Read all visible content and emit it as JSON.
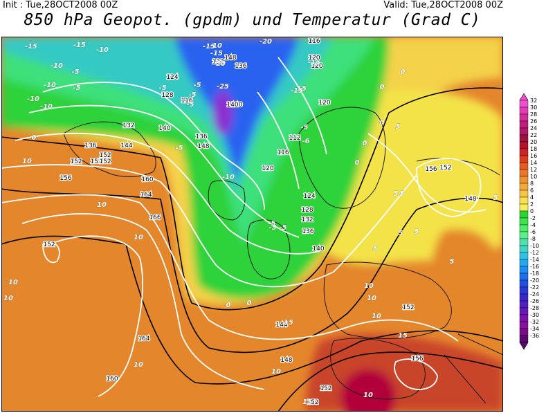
{
  "header": {
    "init": "Init : Tue,28OCT2008 00Z",
    "valid": "Valid: Tue,28OCT2008 00Z",
    "title": "850 hPa Geopot. (gpdm) und Temperatur (Grad C)"
  },
  "colors": {
    "deep_violet": "#8e2fd0",
    "blue": "#2a62f0",
    "cyan": "#22c6e8",
    "green": "#2ed23a",
    "yellow_green": "#a8e23a",
    "yellow": "#f4e24a",
    "orange": "#e4862c",
    "deep_orange": "#da6422",
    "red": "#c22a2a",
    "crimson": "#b2003a"
  },
  "legend": {
    "labels": [
      "32",
      "30",
      "28",
      "26",
      "24",
      "22",
      "20",
      "18",
      "16",
      "14",
      "12",
      "10",
      "8",
      "6",
      "4",
      "2",
      "0",
      "-2",
      "-4",
      "-6",
      "-8",
      "-10",
      "-12",
      "-14",
      "-16",
      "-18",
      "-20",
      "-22",
      "-24",
      "-26",
      "-28",
      "-30",
      "-32",
      "-34",
      "-36"
    ],
    "colors": [
      "#f050d0",
      "#e43cb4",
      "#d42c98",
      "#c21c7c",
      "#b01868",
      "#9e1242",
      "#b8102a",
      "#cc2424",
      "#e03a1c",
      "#e85a1e",
      "#ec7624",
      "#f09030",
      "#f4aa3a",
      "#f8c446",
      "#fae052",
      "#f4f05a",
      "#2ad630",
      "#3ae44a",
      "#4af064",
      "#5af28a",
      "#50e2aa",
      "#40d4c8",
      "#2cc4e6",
      "#20aaf0",
      "#1e8cf2",
      "#1e6ef0",
      "#2050e6",
      "#2a38d8",
      "#3a26cc",
      "#5020c4",
      "#6618b8",
      "#7a14ac",
      "#8c10a0",
      "#7a0c8a",
      "#5a0870"
    ]
  },
  "geopotential_labels": [
    {
      "v": "116"
    },
    {
      "v": "120"
    },
    {
      "v": "124"
    },
    {
      "v": "128"
    },
    {
      "v": "132"
    },
    {
      "v": "136"
    },
    {
      "v": "140"
    },
    {
      "v": "144"
    },
    {
      "v": "148"
    },
    {
      "v": "140"
    },
    {
      "v": "132"
    },
    {
      "v": "136"
    },
    {
      "v": "148"
    },
    {
      "v": "152"
    },
    {
      "v": "152"
    },
    {
      "v": "156"
    },
    {
      "v": "160"
    },
    {
      "v": "164"
    },
    {
      "v": "166"
    },
    {
      "v": "152"
    },
    {
      "v": "164"
    },
    {
      "v": "160"
    },
    {
      "v": "112"
    },
    {
      "v": "116"
    },
    {
      "v": "120"
    },
    {
      "v": "120"
    },
    {
      "v": "124"
    },
    {
      "v": "128"
    },
    {
      "v": "132"
    },
    {
      "v": "136"
    },
    {
      "v": "140"
    },
    {
      "v": "144"
    },
    {
      "v": "148"
    },
    {
      "v": "152"
    },
    {
      "v": "152"
    },
    {
      "v": "156"
    },
    {
      "v": "152"
    },
    {
      "v": "148"
    },
    {
      "v": "152"
    },
    {
      "v": "156"
    },
    {
      "v": "152"
    },
    {
      "v": "152"
    },
    {
      "v": "116"
    },
    {
      "v": "120"
    },
    {
      "v": "140"
    },
    {
      "v": "136"
    }
  ],
  "temperature_labels": [
    {
      "v": "-15"
    },
    {
      "v": "-15"
    },
    {
      "v": "-10"
    },
    {
      "v": "-10"
    },
    {
      "v": "-5"
    },
    {
      "v": "-5"
    },
    {
      "v": "-10"
    },
    {
      "v": "-10"
    },
    {
      "v": "-10"
    },
    {
      "v": "-5"
    },
    {
      "v": "-10"
    },
    {
      "v": "-15"
    },
    {
      "v": "-20"
    },
    {
      "v": "-20"
    },
    {
      "v": "-15"
    },
    {
      "v": "-15"
    },
    {
      "v": "-25"
    },
    {
      "v": "-15"
    },
    {
      "v": "-5"
    },
    {
      "v": "-5"
    },
    {
      "v": "-5"
    },
    {
      "v": "-6"
    },
    {
      "v": "-10"
    },
    {
      "v": "-15"
    },
    {
      "v": "-5"
    },
    {
      "v": "0"
    },
    {
      "v": "0"
    },
    {
      "v": "0"
    },
    {
      "v": "0"
    },
    {
      "v": "0"
    },
    {
      "v": "0"
    },
    {
      "v": "0"
    },
    {
      "v": "5"
    },
    {
      "v": "5"
    },
    {
      "v": "5"
    },
    {
      "v": "5"
    },
    {
      "v": "5"
    },
    {
      "v": "5"
    },
    {
      "v": "10"
    },
    {
      "v": "10"
    },
    {
      "v": "10"
    },
    {
      "v": "10"
    },
    {
      "v": "10"
    },
    {
      "v": "10"
    },
    {
      "v": "10"
    },
    {
      "v": "10"
    },
    {
      "v": "10"
    },
    {
      "v": "10"
    },
    {
      "v": "10"
    },
    {
      "v": "15"
    },
    {
      "v": "15"
    },
    {
      "v": "15"
    },
    {
      "v": "-5"
    },
    {
      "v": "-5"
    },
    {
      "v": "5"
    },
    {
      "v": "-5"
    },
    {
      "v": "5"
    },
    {
      "v": "0"
    },
    {
      "v": "-5"
    }
  ]
}
